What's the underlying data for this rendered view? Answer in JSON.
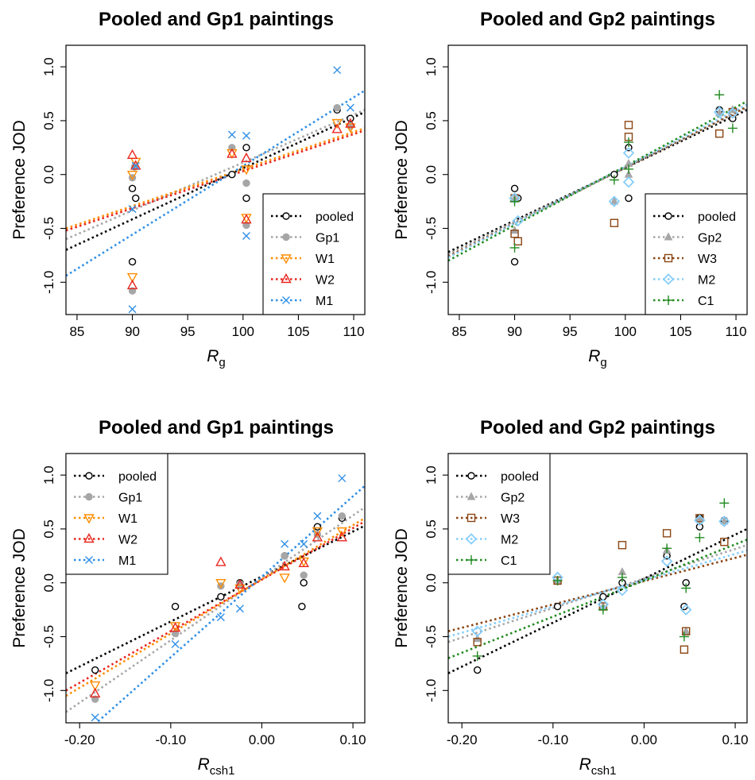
{
  "figure": {
    "panels": [
      {
        "title": "Pooled and Gp1 paintings",
        "xlabel_main": "R",
        "xlabel_sub": "g",
        "ylabel": "Preference JOD",
        "xticks": [
          "85",
          "90",
          "95",
          "100",
          "105",
          "110"
        ],
        "yticks": [
          "-1.0",
          "-0.5",
          "0.0",
          "0.5",
          "1.0"
        ],
        "legend_position": "bottom-right"
      },
      {
        "title": "Pooled and Gp2 paintings",
        "xlabel_main": "R",
        "xlabel_sub": "g",
        "ylabel": "Preference JOD",
        "xticks": [
          "85",
          "90",
          "95",
          "100",
          "105",
          "110"
        ],
        "yticks": [
          "-1.0",
          "-0.5",
          "0.0",
          "0.5",
          "1.0"
        ],
        "legend_position": "bottom-right"
      },
      {
        "title": "Pooled and Gp1 paintings",
        "xlabel_main": "R",
        "xlabel_sub": "csh1",
        "ylabel": "Preference JOD",
        "xticks": [
          "-0.20",
          "-0.10",
          "0.00",
          "0.10"
        ],
        "yticks": [
          "-1.0",
          "-0.5",
          "0.0",
          "0.5",
          "1.0"
        ],
        "legend_position": "top-left"
      },
      {
        "title": "Pooled and Gp2 paintings",
        "xlabel_main": "R",
        "xlabel_sub": "csh1",
        "ylabel": "Preference JOD",
        "xticks": [
          "-0.20",
          "-0.10",
          "0.00",
          "0.10"
        ],
        "yticks": [
          "-1.0",
          "-0.5",
          "0.0",
          "0.5",
          "1.0"
        ],
        "legend_position": "top-left"
      }
    ]
  },
  "series_styles": {
    "pooled": {
      "color": "#000000",
      "marker": "circle"
    },
    "Gp1": {
      "color": "#a6a6a6",
      "marker": "filled-circle"
    },
    "Gp2": {
      "color": "#a6a6a6",
      "marker": "filled-triangle"
    },
    "W1": {
      "color": "#ff8c00",
      "marker": "triangle-down"
    },
    "W2": {
      "color": "#e8261e",
      "marker": "triangle-up"
    },
    "M1": {
      "color": "#2f8fe6",
      "marker": "x"
    },
    "W3": {
      "color": "#8b4513",
      "marker": "square"
    },
    "M2": {
      "color": "#87cefa",
      "marker": "diamond"
    },
    "C1": {
      "color": "#228b22",
      "marker": "plus"
    }
  },
  "chart_data": [
    {
      "type": "scatter",
      "title": "Pooled and Gp1 paintings",
      "xlabel": "Rg",
      "ylabel": "Preference JOD",
      "xlim": [
        84,
        111
      ],
      "ylim": [
        -1.3,
        1.2
      ],
      "legend": "bottom-right",
      "series": [
        {
          "name": "pooled",
          "points": [
            [
              90,
              -0.13
            ],
            [
              90.3,
              -0.22
            ],
            [
              90,
              -0.81
            ],
            [
              99,
              0.0
            ],
            [
              100.3,
              0.25
            ],
            [
              100.3,
              -0.22
            ],
            [
              108.5,
              0.6
            ],
            [
              109.7,
              0.52
            ]
          ],
          "fit": [
            [
              84,
              -0.7
            ],
            [
              111,
              0.58
            ]
          ]
        },
        {
          "name": "Gp1",
          "points": [
            [
              90,
              -0.03
            ],
            [
              90.2,
              0.07
            ],
            [
              90,
              -1.08
            ],
            [
              99,
              0.25
            ],
            [
              100.3,
              -0.08
            ],
            [
              100.3,
              -0.47
            ],
            [
              108.5,
              0.62
            ],
            [
              109.7,
              0.45
            ]
          ],
          "fit": [
            [
              84,
              -0.6
            ],
            [
              111,
              0.6
            ]
          ]
        },
        {
          "name": "W1",
          "points": [
            [
              90,
              0.0
            ],
            [
              90.3,
              0.12
            ],
            [
              90,
              -0.95
            ],
            [
              99,
              0.2
            ],
            [
              100.3,
              0.05
            ],
            [
              100.3,
              -0.4
            ],
            [
              108.5,
              0.48
            ],
            [
              109.7,
              0.44
            ]
          ],
          "fit": [
            [
              84,
              -0.5
            ],
            [
              111,
              0.43
            ]
          ]
        },
        {
          "name": "W2",
          "points": [
            [
              90,
              0.18
            ],
            [
              90.3,
              0.08
            ],
            [
              90,
              -1.03
            ],
            [
              99,
              0.19
            ],
            [
              100.3,
              0.15
            ],
            [
              100.3,
              -0.42
            ],
            [
              108.5,
              0.42
            ],
            [
              109.7,
              0.47
            ]
          ],
          "fit": [
            [
              84,
              -0.52
            ],
            [
              111,
              0.41
            ]
          ]
        },
        {
          "name": "M1",
          "points": [
            [
              90,
              -0.32
            ],
            [
              90.3,
              0.08
            ],
            [
              90,
              -1.25
            ],
            [
              99,
              0.37
            ],
            [
              100.3,
              0.36
            ],
            [
              100.3,
              -0.57
            ],
            [
              108.5,
              0.97
            ],
            [
              109.7,
              0.62
            ]
          ],
          "fit": [
            [
              84,
              -0.94
            ],
            [
              111,
              0.78
            ]
          ]
        }
      ]
    },
    {
      "type": "scatter",
      "title": "Pooled and Gp2 paintings",
      "xlabel": "Rg",
      "ylabel": "Preference JOD",
      "xlim": [
        84,
        111
      ],
      "ylim": [
        -1.3,
        1.2
      ],
      "legend": "bottom-right",
      "series": [
        {
          "name": "pooled",
          "points": [
            [
              90,
              -0.13
            ],
            [
              90.3,
              -0.22
            ],
            [
              90,
              -0.81
            ],
            [
              99,
              0.0
            ],
            [
              100.3,
              0.25
            ],
            [
              100.3,
              -0.22
            ],
            [
              108.5,
              0.6
            ],
            [
              109.7,
              0.52
            ]
          ],
          "fit": [
            [
              84,
              -0.72
            ],
            [
              111,
              0.6
            ]
          ]
        },
        {
          "name": "Gp2",
          "points": [
            [
              90,
              -0.22
            ],
            [
              90,
              -0.52
            ],
            [
              99,
              -0.25
            ],
            [
              100.3,
              0.1
            ],
            [
              100.3,
              0.0
            ],
            [
              108.5,
              0.57
            ],
            [
              109.7,
              0.6
            ]
          ],
          "fit": [
            [
              84,
              -0.74
            ],
            [
              111,
              0.62
            ]
          ]
        },
        {
          "name": "W3",
          "points": [
            [
              90,
              -0.22
            ],
            [
              90.3,
              -0.62
            ],
            [
              90,
              -0.55
            ],
            [
              99,
              -0.45
            ],
            [
              100.3,
              0.46
            ],
            [
              100.3,
              0.35
            ],
            [
              108.5,
              0.38
            ],
            [
              109.7,
              0.58
            ]
          ],
          "fit": [
            [
              84,
              -0.76
            ],
            [
              111,
              0.63
            ]
          ]
        },
        {
          "name": "M2",
          "points": [
            [
              90,
              -0.22
            ],
            [
              90.3,
              -0.43
            ],
            [
              99,
              -0.25
            ],
            [
              100.3,
              0.2
            ],
            [
              100.3,
              -0.07
            ],
            [
              108.5,
              0.58
            ],
            [
              109.7,
              0.57
            ]
          ],
          "fit": [
            [
              84,
              -0.77
            ],
            [
              111,
              0.65
            ]
          ]
        },
        {
          "name": "C1",
          "points": [
            [
              90,
              -0.25
            ],
            [
              90,
              -0.68
            ],
            [
              99,
              -0.05
            ],
            [
              100.3,
              0.3
            ],
            [
              100.3,
              0.05
            ],
            [
              108.5,
              0.74
            ],
            [
              109.7,
              0.43
            ]
          ],
          "fit": [
            [
              84,
              -0.8
            ],
            [
              111,
              0.68
            ]
          ]
        }
      ]
    },
    {
      "type": "scatter",
      "title": "Pooled and Gp1 paintings",
      "xlabel": "Rcsh1",
      "ylabel": "Preference JOD",
      "xlim": [
        -0.215,
        0.113
      ],
      "ylim": [
        -1.3,
        1.2
      ],
      "legend": "top-left",
      "series": [
        {
          "name": "pooled",
          "points": [
            [
              -0.183,
              -0.81
            ],
            [
              -0.095,
              -0.22
            ],
            [
              -0.045,
              -0.13
            ],
            [
              -0.024,
              0.0
            ],
            [
              0.025,
              0.25
            ],
            [
              0.044,
              -0.22
            ],
            [
              0.046,
              0.0
            ],
            [
              0.061,
              0.52
            ],
            [
              0.088,
              0.6
            ]
          ],
          "fit": [
            [
              -0.215,
              -0.84
            ],
            [
              0.113,
              0.53
            ]
          ]
        },
        {
          "name": "Gp1",
          "points": [
            [
              -0.183,
              -1.08
            ],
            [
              -0.095,
              -0.47
            ],
            [
              -0.045,
              -0.03
            ],
            [
              -0.024,
              -0.01
            ],
            [
              0.025,
              0.25
            ],
            [
              0.046,
              0.07
            ],
            [
              0.061,
              0.45
            ],
            [
              0.088,
              0.62
            ]
          ],
          "fit": [
            [
              -0.215,
              -1.2
            ],
            [
              0.113,
              0.7
            ]
          ]
        },
        {
          "name": "W1",
          "points": [
            [
              -0.183,
              -0.95
            ],
            [
              -0.095,
              -0.4
            ],
            [
              -0.045,
              0.0
            ],
            [
              -0.024,
              -0.05
            ],
            [
              0.025,
              0.05
            ],
            [
              0.046,
              0.2
            ],
            [
              0.061,
              0.48
            ],
            [
              0.088,
              0.48
            ]
          ],
          "fit": [
            [
              -0.215,
              -1.05
            ],
            [
              0.113,
              0.6
            ]
          ]
        },
        {
          "name": "W2",
          "points": [
            [
              -0.183,
              -1.03
            ],
            [
              -0.095,
              -0.42
            ],
            [
              -0.045,
              0.19
            ],
            [
              -0.024,
              -0.02
            ],
            [
              0.025,
              0.15
            ],
            [
              0.046,
              0.18
            ],
            [
              0.061,
              0.42
            ],
            [
              0.088,
              0.42
            ]
          ],
          "fit": [
            [
              -0.215,
              -1.0
            ],
            [
              0.113,
              0.57
            ]
          ]
        },
        {
          "name": "M1",
          "points": [
            [
              -0.183,
              -1.25
            ],
            [
              -0.095,
              -0.57
            ],
            [
              -0.045,
              -0.32
            ],
            [
              -0.024,
              -0.24
            ],
            [
              0.025,
              0.36
            ],
            [
              0.046,
              0.36
            ],
            [
              0.061,
              0.62
            ],
            [
              0.088,
              0.97
            ]
          ],
          "fit": [
            [
              -0.215,
              -1.55
            ],
            [
              0.113,
              0.9
            ]
          ]
        }
      ]
    },
    {
      "type": "scatter",
      "title": "Pooled and Gp2 paintings",
      "xlabel": "Rcsh1",
      "ylabel": "Preference JOD",
      "xlim": [
        -0.215,
        0.113
      ],
      "ylim": [
        -1.3,
        1.2
      ],
      "legend": "top-left",
      "series": [
        {
          "name": "pooled",
          "points": [
            [
              -0.183,
              -0.81
            ],
            [
              -0.095,
              -0.22
            ],
            [
              -0.045,
              -0.13
            ],
            [
              -0.024,
              0.0
            ],
            [
              0.025,
              0.25
            ],
            [
              0.044,
              -0.22
            ],
            [
              0.046,
              0.0
            ],
            [
              0.061,
              0.52
            ],
            [
              0.061,
              0.6
            ],
            [
              0.088,
              0.58
            ]
          ],
          "fit": [
            [
              -0.215,
              -0.84
            ],
            [
              0.113,
              0.5
            ]
          ]
        },
        {
          "name": "Gp2",
          "points": [
            [
              -0.183,
              -0.52
            ],
            [
              -0.095,
              0.02
            ],
            [
              -0.045,
              -0.22
            ],
            [
              -0.024,
              0.1
            ],
            [
              0.025,
              0.3
            ],
            [
              0.046,
              -0.45
            ],
            [
              0.061,
              0.6
            ],
            [
              0.088,
              0.57
            ]
          ],
          "fit": [
            [
              -0.215,
              -0.55
            ],
            [
              0.113,
              0.35
            ]
          ]
        },
        {
          "name": "W3",
          "points": [
            [
              -0.183,
              -0.55
            ],
            [
              -0.095,
              0.02
            ],
            [
              -0.045,
              -0.22
            ],
            [
              -0.024,
              0.35
            ],
            [
              0.025,
              0.46
            ],
            [
              0.044,
              -0.62
            ],
            [
              0.046,
              -0.45
            ],
            [
              0.061,
              0.6
            ],
            [
              0.088,
              0.38
            ]
          ],
          "fit": [
            [
              -0.215,
              -0.45
            ],
            [
              0.113,
              0.26
            ]
          ]
        },
        {
          "name": "M2",
          "points": [
            [
              -0.183,
              -0.45
            ],
            [
              -0.095,
              0.05
            ],
            [
              -0.045,
              -0.2
            ],
            [
              -0.024,
              -0.07
            ],
            [
              0.025,
              0.2
            ],
            [
              0.046,
              -0.25
            ],
            [
              0.061,
              0.58
            ],
            [
              0.088,
              0.57
            ]
          ],
          "fit": [
            [
              -0.215,
              -0.5
            ],
            [
              0.113,
              0.3
            ]
          ]
        },
        {
          "name": "C1",
          "points": [
            [
              -0.183,
              -0.68
            ],
            [
              -0.095,
              0.02
            ],
            [
              -0.045,
              -0.25
            ],
            [
              -0.024,
              0.05
            ],
            [
              0.025,
              0.32
            ],
            [
              0.044,
              -0.5
            ],
            [
              0.046,
              -0.05
            ],
            [
              0.061,
              0.42
            ],
            [
              0.088,
              0.74
            ]
          ],
          "fit": [
            [
              -0.215,
              -0.7
            ],
            [
              0.113,
              0.4
            ]
          ]
        }
      ]
    }
  ]
}
